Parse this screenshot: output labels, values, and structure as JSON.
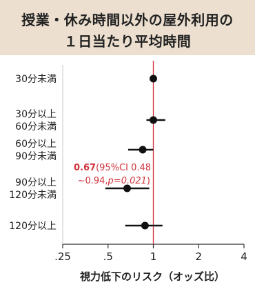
{
  "title_lines": [
    "授業・休み時間以外の屋外利用の",
    "１日当たり平均時間"
  ],
  "colors": {
    "title_bg": "#ecdfcf",
    "reference_line": "#d0343c",
    "annotation": "#d0343c",
    "marker": "#111111"
  },
  "chart_data": {
    "type": "scatter",
    "orientation": "horizontal-forest",
    "x_scale": "log",
    "xlim": [
      0.25,
      4
    ],
    "xticks": [
      0.25,
      0.5,
      1,
      2,
      4
    ],
    "xtick_labels": [
      ".25",
      ".5",
      "1",
      "2",
      "4"
    ],
    "xlabel": "視力低下のリスク（オッズ比）",
    "reference_value": 1,
    "categories": [
      [
        "30分未満"
      ],
      [
        "30分以上",
        "60分未満"
      ],
      [
        "60分以上",
        "90分未満"
      ],
      [
        "90分以上",
        "120分未満"
      ],
      [
        "120分以上"
      ]
    ],
    "points": [
      {
        "or": 1.0
      },
      {
        "or": 1.0,
        "ci_low": 0.9,
        "ci_high": 1.2
      },
      {
        "or": 0.85,
        "ci_low": 0.68,
        "ci_high": 1.0
      },
      {
        "or": 0.67,
        "ci_low": 0.48,
        "ci_high": 0.94
      },
      {
        "or": 0.88,
        "ci_low": 0.65,
        "ci_high": 1.15
      }
    ],
    "annotation": {
      "value": "0.67",
      "line1": "(95%CI 0.48",
      "line2_a": "~0.94,",
      "line2_b": "p=0.021",
      "line2_c": ")"
    }
  }
}
